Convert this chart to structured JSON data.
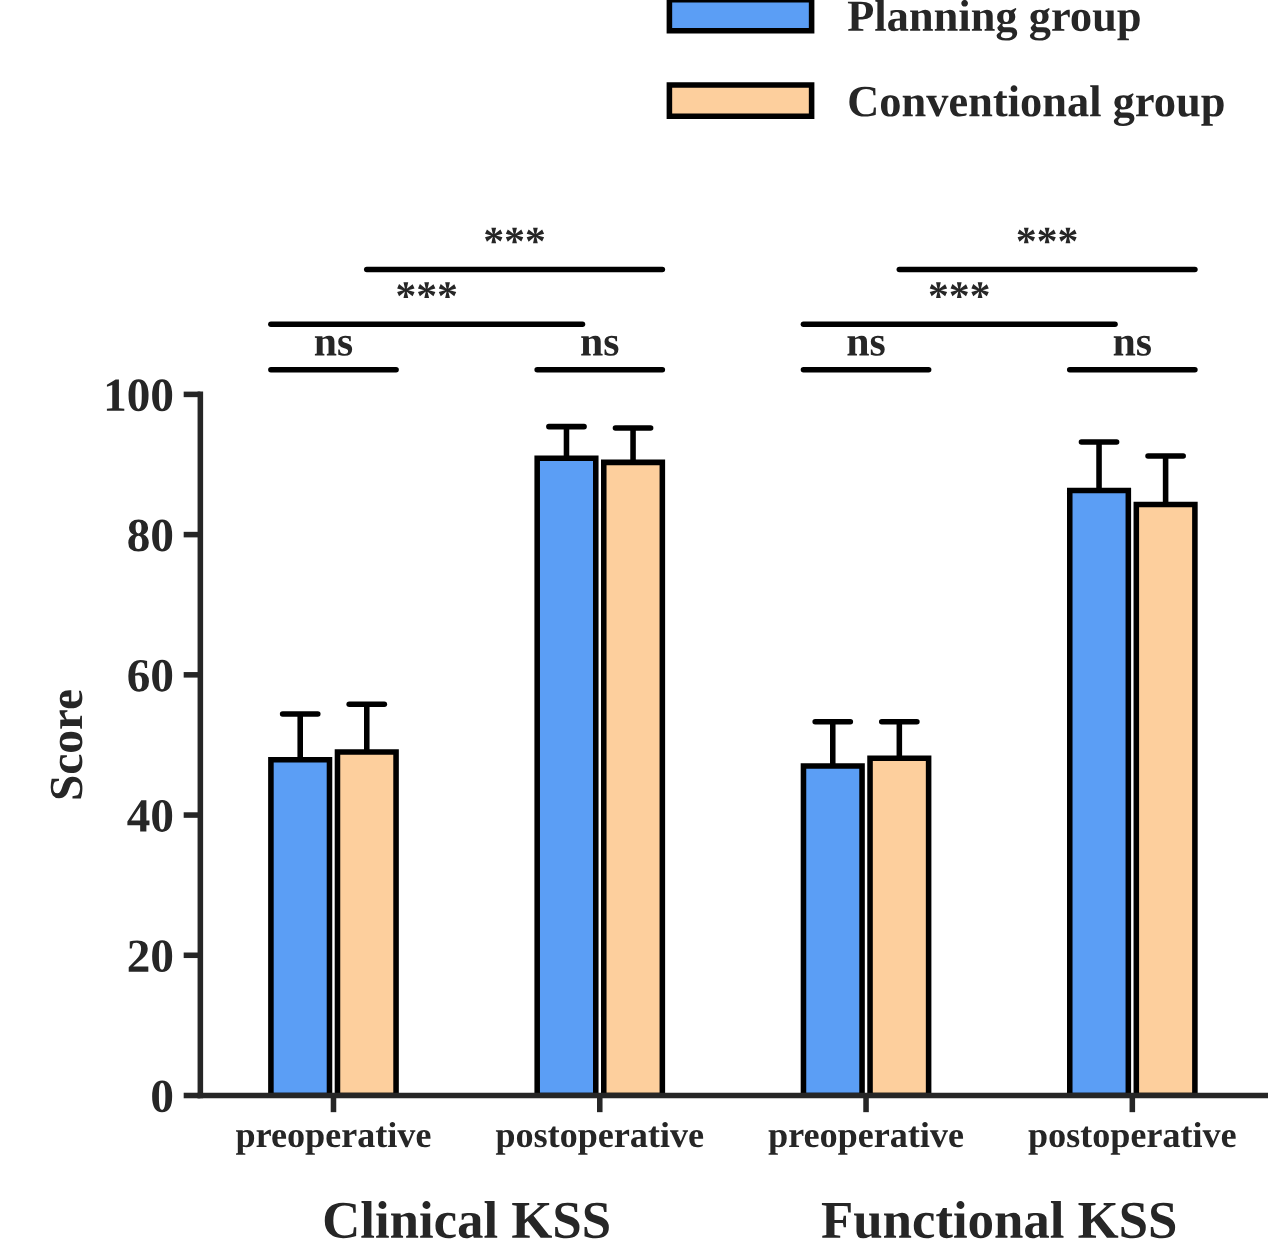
{
  "chart_data": {
    "type": "bar",
    "ylabel": "Score",
    "categories": [
      "preoperative",
      "postoperative",
      "preoperative",
      "postoperative"
    ],
    "series": [
      {
        "name": "Planning group",
        "color": "#5b9ef5",
        "values": [
          47.9,
          90.9,
          47.0,
          86.3
        ],
        "errors": [
          [
            47.9,
            54.4
          ],
          [
            90.9,
            95.4
          ],
          [
            47.0,
            53.3
          ],
          [
            86.3,
            93.2
          ]
        ]
      },
      {
        "name": "Conventional group",
        "color": "#fdcf9d",
        "values": [
          49.0,
          90.3,
          48.1,
          84.3
        ],
        "errors": [
          [
            49.0,
            55.8
          ],
          [
            90.3,
            95.2
          ],
          [
            48.1,
            53.3
          ],
          [
            84.3,
            91.2
          ]
        ]
      }
    ],
    "ylim": [
      0,
      100
    ],
    "yticks": [
      0,
      20,
      40,
      60,
      80,
      100
    ],
    "legend": "top right",
    "grid": false,
    "annotations": [
      "ns",
      "ns",
      "ns",
      "ns",
      "***",
      "***",
      "***",
      "***",
      "Clinical KSS",
      "Functional KSS"
    ]
  }
}
